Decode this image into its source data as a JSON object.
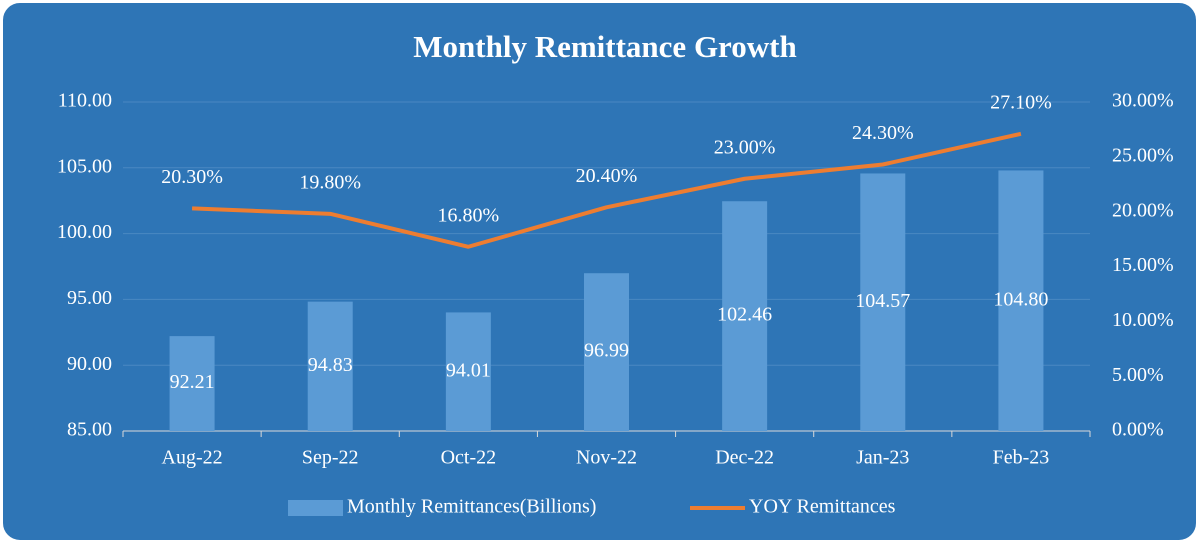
{
  "chart_data": {
    "type": "bar_line",
    "title": "Monthly Remittance Growth",
    "categories": [
      "Aug-22",
      "Sep-22",
      "Oct-22",
      "Nov-22",
      "Dec-22",
      "Jan-23",
      "Feb-23"
    ],
    "series": [
      {
        "name": "Monthly Remittances(Billions)",
        "type": "bar",
        "color": "#5b9bd5",
        "values": [
          92.21,
          94.83,
          94.01,
          96.99,
          102.46,
          104.57,
          104.8
        ],
        "value_labels": [
          "92.21",
          "94.83",
          "94.01",
          "96.99",
          "102.46",
          "104.57",
          "104.80"
        ]
      },
      {
        "name": "YOY Remittances",
        "type": "line",
        "axis": "y2",
        "color": "#ed7d31",
        "values": [
          20.3,
          19.8,
          16.8,
          20.4,
          23.0,
          24.3,
          27.1
        ],
        "value_labels": [
          "20.30%",
          "19.80%",
          "16.80%",
          "20.40%",
          "23.00%",
          "24.30%",
          "27.10%"
        ]
      }
    ],
    "ylim": [
      85,
      110
    ],
    "yticks": [
      {
        "value": 85,
        "label": "85.00"
      },
      {
        "value": 90,
        "label": "90.00"
      },
      {
        "value": 95,
        "label": "95.00"
      },
      {
        "value": 100,
        "label": "100.00"
      },
      {
        "value": 105,
        "label": "105.00"
      },
      {
        "value": 110,
        "label": "110.00"
      }
    ],
    "y2lim": [
      0,
      30
    ],
    "y2ticks": [
      {
        "value": 0,
        "label": "0.00%"
      },
      {
        "value": 5,
        "label": "5.00%"
      },
      {
        "value": 10,
        "label": "10.00%"
      },
      {
        "value": 15,
        "label": "15.00%"
      },
      {
        "value": 20,
        "label": "20.00%"
      },
      {
        "value": 25,
        "label": "25.00%"
      },
      {
        "value": 30,
        "label": "30.00%"
      }
    ],
    "grid": true,
    "legend": "bottom"
  }
}
